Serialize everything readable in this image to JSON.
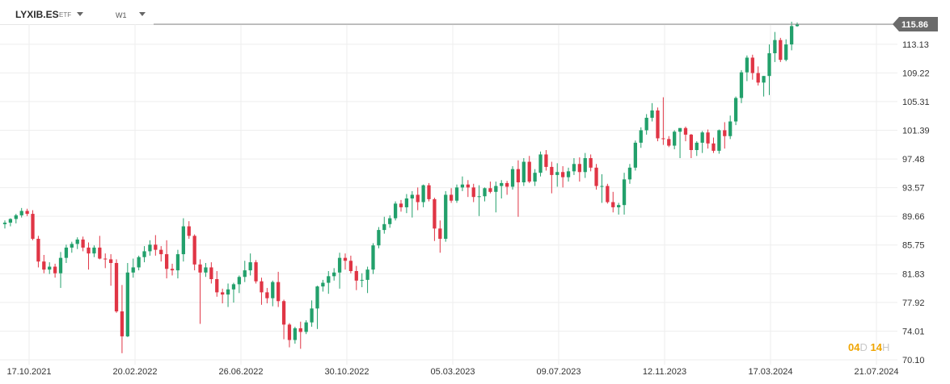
{
  "header": {
    "symbol": "LYXIB.ES",
    "symbol_type": "ETF",
    "timeframe": "W1"
  },
  "countdown": {
    "d_value": "04",
    "d_unit": "D",
    "h_value": "14",
    "h_unit": "H"
  },
  "colors": {
    "up": "#22a06b",
    "down": "#e03545",
    "price_tag": "#6b6b6b",
    "grid": "#eeeeee",
    "axis_text": "#333333"
  },
  "chart_data": {
    "type": "candlestick",
    "title": "",
    "interval": "weekly",
    "current_price": 115.86,
    "current_price_label": "115.86",
    "ylim": [
      70.1,
      115.86
    ],
    "y_ticks": [
      "113.13",
      "109.22",
      "105.31",
      "101.39",
      "97.48",
      "93.57",
      "89.66",
      "85.75",
      "81.83",
      "77.92",
      "74.01",
      "70.10"
    ],
    "x_ticks": [
      "17.10.2021",
      "20.02.2022",
      "26.06.2022",
      "30.10.2022",
      "05.03.2023",
      "09.07.2023",
      "12.11.2023",
      "17.03.2024",
      "21.07.2024"
    ],
    "grid": true,
    "candles": [
      {
        "o": 88.6,
        "h": 89.1,
        "l": 88.0,
        "c": 88.8
      },
      {
        "o": 88.8,
        "h": 89.4,
        "l": 88.3,
        "c": 89.3
      },
      {
        "o": 89.3,
        "h": 90.0,
        "l": 88.7,
        "c": 89.8
      },
      {
        "o": 89.8,
        "h": 90.8,
        "l": 89.5,
        "c": 90.4
      },
      {
        "o": 90.4,
        "h": 90.7,
        "l": 89.7,
        "c": 90.0
      },
      {
        "o": 90.0,
        "h": 90.5,
        "l": 86.4,
        "c": 86.6
      },
      {
        "o": 86.6,
        "h": 87.0,
        "l": 82.7,
        "c": 83.5
      },
      {
        "o": 83.5,
        "h": 84.4,
        "l": 81.9,
        "c": 82.4
      },
      {
        "o": 82.4,
        "h": 83.4,
        "l": 81.8,
        "c": 82.8
      },
      {
        "o": 82.8,
        "h": 83.2,
        "l": 81.3,
        "c": 81.9
      },
      {
        "o": 81.9,
        "h": 84.8,
        "l": 79.9,
        "c": 84.0
      },
      {
        "o": 84.0,
        "h": 85.8,
        "l": 83.3,
        "c": 85.4
      },
      {
        "o": 85.4,
        "h": 86.2,
        "l": 84.7,
        "c": 85.9
      },
      {
        "o": 85.9,
        "h": 86.8,
        "l": 85.2,
        "c": 86.5
      },
      {
        "o": 86.5,
        "h": 86.9,
        "l": 84.9,
        "c": 85.4
      },
      {
        "o": 85.4,
        "h": 86.1,
        "l": 82.4,
        "c": 84.6
      },
      {
        "o": 84.6,
        "h": 85.7,
        "l": 84.1,
        "c": 85.4
      },
      {
        "o": 85.4,
        "h": 87.0,
        "l": 83.8,
        "c": 83.9
      },
      {
        "o": 83.9,
        "h": 84.6,
        "l": 82.6,
        "c": 83.8
      },
      {
        "o": 83.8,
        "h": 84.5,
        "l": 80.2,
        "c": 83.3
      },
      {
        "o": 83.3,
        "h": 83.8,
        "l": 76.5,
        "c": 76.7
      },
      {
        "o": 76.7,
        "h": 80.3,
        "l": 71.0,
        "c": 73.3
      },
      {
        "o": 73.3,
        "h": 83.3,
        "l": 73.2,
        "c": 82.0
      },
      {
        "o": 82.0,
        "h": 83.9,
        "l": 81.3,
        "c": 82.7
      },
      {
        "o": 82.7,
        "h": 84.3,
        "l": 82.3,
        "c": 84.1
      },
      {
        "o": 84.1,
        "h": 85.6,
        "l": 83.4,
        "c": 84.9
      },
      {
        "o": 84.9,
        "h": 86.4,
        "l": 84.3,
        "c": 85.8
      },
      {
        "o": 85.8,
        "h": 87.1,
        "l": 84.3,
        "c": 85.1
      },
      {
        "o": 85.1,
        "h": 85.6,
        "l": 83.5,
        "c": 84.5
      },
      {
        "o": 84.5,
        "h": 86.4,
        "l": 81.2,
        "c": 82.5
      },
      {
        "o": 82.5,
        "h": 83.2,
        "l": 81.6,
        "c": 82.3
      },
      {
        "o": 82.3,
        "h": 85.1,
        "l": 81.2,
        "c": 84.5
      },
      {
        "o": 84.5,
        "h": 89.4,
        "l": 83.5,
        "c": 88.3
      },
      {
        "o": 88.3,
        "h": 89.0,
        "l": 86.6,
        "c": 87.0
      },
      {
        "o": 87.0,
        "h": 87.2,
        "l": 82.3,
        "c": 83.1
      },
      {
        "o": 83.1,
        "h": 83.8,
        "l": 75.0,
        "c": 82.0
      },
      {
        "o": 82.0,
        "h": 83.3,
        "l": 81.4,
        "c": 82.7
      },
      {
        "o": 82.7,
        "h": 83.4,
        "l": 80.5,
        "c": 81.1
      },
      {
        "o": 81.1,
        "h": 82.2,
        "l": 78.7,
        "c": 79.3
      },
      {
        "o": 79.3,
        "h": 79.8,
        "l": 77.8,
        "c": 79.0
      },
      {
        "o": 79.0,
        "h": 80.5,
        "l": 77.3,
        "c": 79.7
      },
      {
        "o": 79.7,
        "h": 80.6,
        "l": 77.9,
        "c": 80.4
      },
      {
        "o": 80.4,
        "h": 81.6,
        "l": 79.2,
        "c": 81.4
      },
      {
        "o": 81.4,
        "h": 83.6,
        "l": 80.7,
        "c": 82.3
      },
      {
        "o": 82.3,
        "h": 84.6,
        "l": 81.6,
        "c": 83.4
      },
      {
        "o": 83.4,
        "h": 83.7,
        "l": 80.5,
        "c": 80.8
      },
      {
        "o": 80.8,
        "h": 81.3,
        "l": 77.6,
        "c": 79.3
      },
      {
        "o": 79.3,
        "h": 79.9,
        "l": 77.8,
        "c": 78.5
      },
      {
        "o": 78.5,
        "h": 80.9,
        "l": 77.4,
        "c": 80.7
      },
      {
        "o": 80.7,
        "h": 82.1,
        "l": 77.3,
        "c": 78.1
      },
      {
        "o": 78.1,
        "h": 78.3,
        "l": 72.9,
        "c": 74.9
      },
      {
        "o": 74.9,
        "h": 75.1,
        "l": 71.8,
        "c": 72.8
      },
      {
        "o": 72.8,
        "h": 74.6,
        "l": 72.3,
        "c": 74.4
      },
      {
        "o": 74.4,
        "h": 75.3,
        "l": 71.6,
        "c": 73.9
      },
      {
        "o": 73.9,
        "h": 75.5,
        "l": 73.6,
        "c": 75.2
      },
      {
        "o": 75.2,
        "h": 78.2,
        "l": 74.6,
        "c": 77.1
      },
      {
        "o": 77.1,
        "h": 80.2,
        "l": 74.3,
        "c": 80.1
      },
      {
        "o": 80.1,
        "h": 81.0,
        "l": 79.4,
        "c": 80.6
      },
      {
        "o": 80.6,
        "h": 82.2,
        "l": 79.1,
        "c": 81.5
      },
      {
        "o": 81.5,
        "h": 82.6,
        "l": 80.9,
        "c": 82.0
      },
      {
        "o": 82.0,
        "h": 84.7,
        "l": 79.8,
        "c": 84.0
      },
      {
        "o": 84.0,
        "h": 84.6,
        "l": 82.4,
        "c": 83.6
      },
      {
        "o": 83.6,
        "h": 84.3,
        "l": 81.9,
        "c": 82.2
      },
      {
        "o": 82.2,
        "h": 82.9,
        "l": 79.6,
        "c": 80.9
      },
      {
        "o": 80.9,
        "h": 81.9,
        "l": 80.0,
        "c": 81.0
      },
      {
        "o": 81.0,
        "h": 82.8,
        "l": 79.2,
        "c": 82.4
      },
      {
        "o": 82.4,
        "h": 86.0,
        "l": 81.8,
        "c": 85.7
      },
      {
        "o": 85.7,
        "h": 88.2,
        "l": 85.3,
        "c": 87.8
      },
      {
        "o": 87.8,
        "h": 89.6,
        "l": 87.3,
        "c": 88.6
      },
      {
        "o": 88.6,
        "h": 89.8,
        "l": 88.1,
        "c": 89.4
      },
      {
        "o": 89.4,
        "h": 91.7,
        "l": 89.1,
        "c": 91.4
      },
      {
        "o": 91.4,
        "h": 91.9,
        "l": 90.3,
        "c": 90.9
      },
      {
        "o": 90.9,
        "h": 92.7,
        "l": 90.1,
        "c": 92.1
      },
      {
        "o": 92.1,
        "h": 93.1,
        "l": 89.5,
        "c": 92.6
      },
      {
        "o": 92.6,
        "h": 93.6,
        "l": 90.5,
        "c": 91.6
      },
      {
        "o": 91.6,
        "h": 94.0,
        "l": 90.9,
        "c": 93.9
      },
      {
        "o": 93.9,
        "h": 94.2,
        "l": 91.7,
        "c": 92.0
      },
      {
        "o": 92.0,
        "h": 92.2,
        "l": 86.3,
        "c": 88.0
      },
      {
        "o": 88.0,
        "h": 89.1,
        "l": 84.7,
        "c": 86.6
      },
      {
        "o": 86.6,
        "h": 93.1,
        "l": 86.2,
        "c": 92.6
      },
      {
        "o": 92.6,
        "h": 93.5,
        "l": 91.5,
        "c": 91.8
      },
      {
        "o": 91.8,
        "h": 94.0,
        "l": 91.5,
        "c": 93.6
      },
      {
        "o": 93.6,
        "h": 95.1,
        "l": 93.1,
        "c": 94.0
      },
      {
        "o": 94.0,
        "h": 94.6,
        "l": 92.3,
        "c": 93.6
      },
      {
        "o": 93.6,
        "h": 94.1,
        "l": 91.6,
        "c": 92.3
      },
      {
        "o": 92.3,
        "h": 93.9,
        "l": 89.7,
        "c": 92.4
      },
      {
        "o": 92.4,
        "h": 93.6,
        "l": 91.7,
        "c": 93.5
      },
      {
        "o": 93.5,
        "h": 94.4,
        "l": 92.8,
        "c": 93.0
      },
      {
        "o": 93.0,
        "h": 94.4,
        "l": 90.2,
        "c": 93.8
      },
      {
        "o": 93.8,
        "h": 94.6,
        "l": 92.1,
        "c": 94.2
      },
      {
        "o": 94.2,
        "h": 94.5,
        "l": 92.6,
        "c": 93.7
      },
      {
        "o": 93.7,
        "h": 96.5,
        "l": 93.3,
        "c": 96.1
      },
      {
        "o": 96.1,
        "h": 97.3,
        "l": 89.6,
        "c": 94.3
      },
      {
        "o": 94.3,
        "h": 97.6,
        "l": 93.8,
        "c": 97.1
      },
      {
        "o": 97.1,
        "h": 97.9,
        "l": 94.2,
        "c": 94.4
      },
      {
        "o": 94.4,
        "h": 96.1,
        "l": 93.8,
        "c": 95.6
      },
      {
        "o": 95.6,
        "h": 98.5,
        "l": 95.1,
        "c": 98.1
      },
      {
        "o": 98.1,
        "h": 98.7,
        "l": 95.9,
        "c": 96.4
      },
      {
        "o": 96.4,
        "h": 97.1,
        "l": 92.8,
        "c": 95.3
      },
      {
        "o": 95.3,
        "h": 96.9,
        "l": 93.7,
        "c": 95.7
      },
      {
        "o": 95.7,
        "h": 96.5,
        "l": 93.6,
        "c": 95.0
      },
      {
        "o": 95.0,
        "h": 96.3,
        "l": 94.4,
        "c": 95.8
      },
      {
        "o": 95.8,
        "h": 97.6,
        "l": 95.3,
        "c": 96.8
      },
      {
        "o": 96.8,
        "h": 97.7,
        "l": 94.4,
        "c": 95.7
      },
      {
        "o": 95.7,
        "h": 98.3,
        "l": 94.9,
        "c": 97.6
      },
      {
        "o": 97.6,
        "h": 98.1,
        "l": 95.8,
        "c": 96.3
      },
      {
        "o": 96.3,
        "h": 96.8,
        "l": 93.3,
        "c": 93.8
      },
      {
        "o": 93.8,
        "h": 95.4,
        "l": 91.5,
        "c": 93.8
      },
      {
        "o": 93.8,
        "h": 94.1,
        "l": 91.4,
        "c": 91.6
      },
      {
        "o": 91.6,
        "h": 93.0,
        "l": 90.2,
        "c": 90.9
      },
      {
        "o": 90.9,
        "h": 91.5,
        "l": 89.9,
        "c": 91.2
      },
      {
        "o": 91.2,
        "h": 95.6,
        "l": 89.9,
        "c": 94.7
      },
      {
        "o": 94.7,
        "h": 96.8,
        "l": 94.1,
        "c": 96.3
      },
      {
        "o": 96.3,
        "h": 100.0,
        "l": 95.9,
        "c": 99.7
      },
      {
        "o": 99.7,
        "h": 101.8,
        "l": 99.0,
        "c": 101.4
      },
      {
        "o": 101.4,
        "h": 103.6,
        "l": 100.8,
        "c": 103.1
      },
      {
        "o": 103.1,
        "h": 105.1,
        "l": 102.6,
        "c": 104.1
      },
      {
        "o": 104.1,
        "h": 104.5,
        "l": 99.9,
        "c": 100.3
      },
      {
        "o": 100.3,
        "h": 105.9,
        "l": 99.4,
        "c": 100.2
      },
      {
        "o": 100.2,
        "h": 100.6,
        "l": 99.1,
        "c": 99.3
      },
      {
        "o": 99.3,
        "h": 101.4,
        "l": 98.8,
        "c": 101.2
      },
      {
        "o": 101.2,
        "h": 101.7,
        "l": 97.6,
        "c": 101.7
      },
      {
        "o": 101.7,
        "h": 101.9,
        "l": 99.9,
        "c": 100.8
      },
      {
        "o": 100.8,
        "h": 100.9,
        "l": 97.6,
        "c": 98.7
      },
      {
        "o": 98.7,
        "h": 99.9,
        "l": 97.9,
        "c": 99.7
      },
      {
        "o": 99.7,
        "h": 101.3,
        "l": 98.3,
        "c": 101.1
      },
      {
        "o": 101.1,
        "h": 101.5,
        "l": 98.9,
        "c": 99.6
      },
      {
        "o": 99.6,
        "h": 100.4,
        "l": 98.3,
        "c": 98.6
      },
      {
        "o": 98.6,
        "h": 101.5,
        "l": 98.2,
        "c": 101.4
      },
      {
        "o": 101.4,
        "h": 102.5,
        "l": 98.9,
        "c": 100.6
      },
      {
        "o": 100.6,
        "h": 103.4,
        "l": 100.2,
        "c": 102.6
      },
      {
        "o": 102.6,
        "h": 106.0,
        "l": 102.1,
        "c": 105.8
      },
      {
        "o": 105.8,
        "h": 109.6,
        "l": 105.1,
        "c": 109.3
      },
      {
        "o": 109.3,
        "h": 111.6,
        "l": 108.1,
        "c": 111.3
      },
      {
        "o": 111.3,
        "h": 111.7,
        "l": 108.3,
        "c": 109.2
      },
      {
        "o": 109.2,
        "h": 110.1,
        "l": 107.5,
        "c": 107.9
      },
      {
        "o": 107.9,
        "h": 108.8,
        "l": 106.0,
        "c": 108.8
      },
      {
        "o": 108.8,
        "h": 113.1,
        "l": 106.2,
        "c": 111.9
      },
      {
        "o": 111.9,
        "h": 114.8,
        "l": 110.7,
        "c": 113.7
      },
      {
        "o": 113.7,
        "h": 114.0,
        "l": 110.7,
        "c": 111.0
      },
      {
        "o": 111.0,
        "h": 113.8,
        "l": 110.8,
        "c": 113.1
      },
      {
        "o": 113.1,
        "h": 116.2,
        "l": 112.3,
        "c": 115.6
      },
      {
        "o": 115.6,
        "h": 116.1,
        "l": 115.5,
        "c": 115.9
      }
    ]
  }
}
